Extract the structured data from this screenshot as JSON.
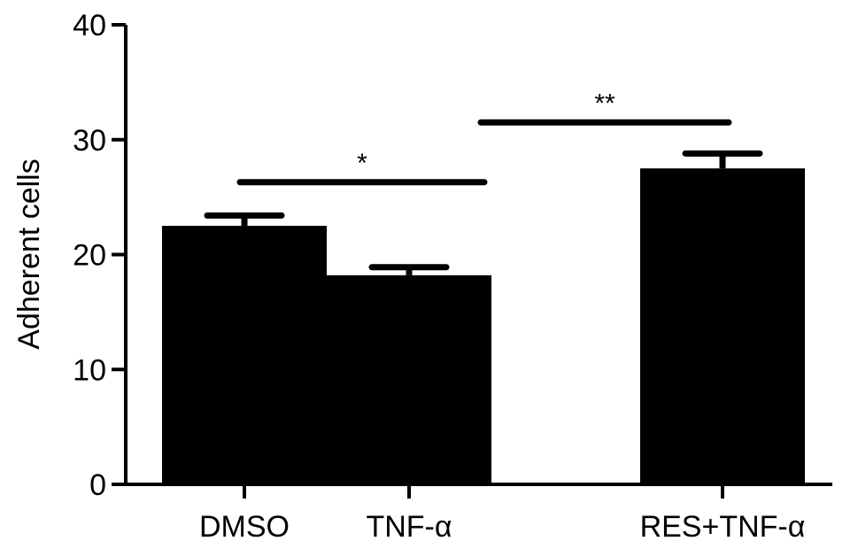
{
  "chart_data": {
    "type": "bar",
    "categories": [
      "DMSO",
      "TNF-α",
      "RES+TNF-α"
    ],
    "values": [
      22.5,
      18.2,
      27.5
    ],
    "errors": [
      0.9,
      0.7,
      1.3
    ],
    "xlabel": "",
    "ylabel": "Adherent cells",
    "ylim": [
      0,
      40
    ],
    "yticks": [
      0,
      10,
      20,
      30,
      40
    ],
    "bar_color": "#000000",
    "grid": false,
    "significance": [
      {
        "from": 0,
        "to": 1,
        "label": "*",
        "y": 26.3
      },
      {
        "from": 1,
        "to": 2,
        "label": "**",
        "y": 31.5
      }
    ]
  }
}
